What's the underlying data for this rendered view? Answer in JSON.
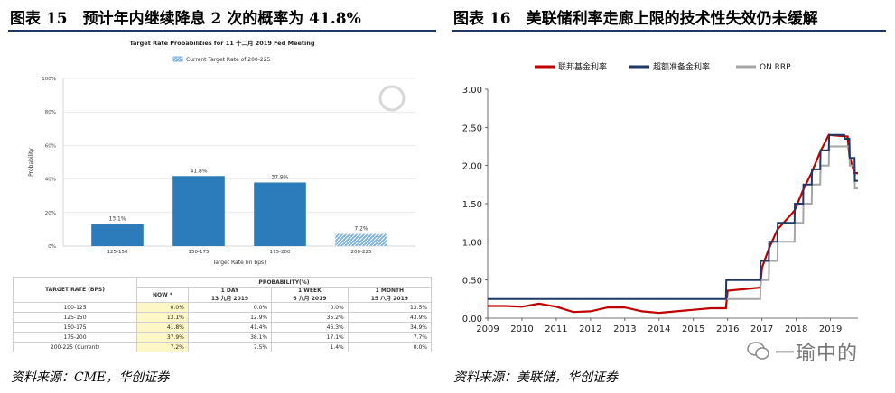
{
  "left": {
    "title": "图表 15　预计年内继续降息 2 次的概率为 41.8%",
    "source": "资料来源：CME，华创证券"
  },
  "right": {
    "title": "图表 16　美联储利率走廊上限的技术性失效仍未缓解",
    "source": "资料来源：美联储，华创证券"
  },
  "watermark": "一瑜中的",
  "chart_data": [
    {
      "type": "bar",
      "title": "Target Rate Probabilities for 11 十二月 2019 Fed Meeting",
      "legend": [
        "Current Target Rate of 200-225"
      ],
      "categories": [
        "125-150",
        "150-175",
        "175-200",
        "200-225"
      ],
      "values": [
        13.1,
        41.8,
        37.9,
        7.2
      ],
      "data_labels": [
        "13.1%",
        "41.8%",
        "37.9%",
        "7.2%"
      ],
      "highlight_category": "200-225",
      "xlabel": "Target Rate (in bps)",
      "ylabel": "Probability",
      "y_ticks": [
        "0%",
        "20%",
        "40%",
        "60%",
        "80%",
        "100%"
      ],
      "ylim": [
        0,
        100
      ],
      "grid": true,
      "colors": {
        "bar": "#2c7bba",
        "highlight": "#7fb3e0"
      }
    },
    {
      "type": "table",
      "group_header": "PROBABILITY(%)",
      "columns": [
        {
          "label": "TARGET RATE (BPS)",
          "sub": ""
        },
        {
          "label": "NOW *",
          "sub": ""
        },
        {
          "label": "1 DAY",
          "sub": "13 九月 2019"
        },
        {
          "label": "1 WEEK",
          "sub": "6 九月 2019"
        },
        {
          "label": "1 MONTH",
          "sub": "15 八月 2019"
        }
      ],
      "rows": [
        [
          "100-125",
          "0.0%",
          "0.0%",
          "0.0%",
          "13.5%"
        ],
        [
          "125-150",
          "13.1%",
          "12.9%",
          "35.2%",
          "43.9%"
        ],
        [
          "150-175",
          "41.8%",
          "41.4%",
          "46.3%",
          "34.9%"
        ],
        [
          "175-200",
          "37.9%",
          "38.1%",
          "17.1%",
          "7.7%"
        ],
        [
          "200-225 (Current)",
          "7.2%",
          "7.5%",
          "1.4%",
          "0.0%"
        ]
      ]
    },
    {
      "type": "line",
      "legend_position": "top",
      "series": [
        {
          "name": "联邦基金利率",
          "color": "#c00000",
          "x": [
            2009.0,
            2009.5,
            2010.0,
            2010.5,
            2011.0,
            2011.5,
            2012.0,
            2012.5,
            2013.0,
            2013.5,
            2014.0,
            2014.5,
            2015.0,
            2015.5,
            2015.95,
            2016.0,
            2016.95,
            2017.0,
            2017.2,
            2017.45,
            2017.95,
            2018.2,
            2018.45,
            2018.7,
            2018.95,
            2019.5,
            2019.55,
            2019.7,
            2019.8
          ],
          "y": [
            0.16,
            0.16,
            0.15,
            0.19,
            0.15,
            0.08,
            0.09,
            0.14,
            0.14,
            0.09,
            0.07,
            0.09,
            0.11,
            0.13,
            0.13,
            0.36,
            0.4,
            0.66,
            0.91,
            1.16,
            1.41,
            1.68,
            1.91,
            2.18,
            2.4,
            2.38,
            2.12,
            1.9,
            1.9
          ]
        },
        {
          "name": "超额准备金利率",
          "color": "#1f3864",
          "x": [
            2009.0,
            2015.95,
            2015.96,
            2016.95,
            2016.96,
            2017.2,
            2017.21,
            2017.45,
            2017.46,
            2017.95,
            2017.96,
            2018.2,
            2018.21,
            2018.45,
            2018.46,
            2018.7,
            2018.71,
            2018.95,
            2018.96,
            2019.4,
            2019.41,
            2019.55,
            2019.56,
            2019.7,
            2019.71,
            2019.8
          ],
          "y": [
            0.25,
            0.25,
            0.5,
            0.5,
            0.75,
            0.75,
            1.0,
            1.0,
            1.25,
            1.25,
            1.5,
            1.5,
            1.75,
            1.75,
            1.95,
            1.95,
            2.2,
            2.2,
            2.4,
            2.4,
            2.35,
            2.35,
            2.1,
            2.1,
            1.8,
            1.8
          ]
        },
        {
          "name": "ON RRP",
          "color": "#a6a6a6",
          "x": [
            2015.95,
            2016.95,
            2016.96,
            2017.2,
            2017.21,
            2017.45,
            2017.46,
            2017.95,
            2017.96,
            2018.2,
            2018.21,
            2018.45,
            2018.46,
            2018.7,
            2018.71,
            2018.95,
            2018.96,
            2019.4,
            2019.41,
            2019.55,
            2019.56,
            2019.7,
            2019.71,
            2019.8
          ],
          "y": [
            0.25,
            0.25,
            0.5,
            0.5,
            0.75,
            0.75,
            1.0,
            1.0,
            1.25,
            1.25,
            1.5,
            1.5,
            1.75,
            1.75,
            2.0,
            2.0,
            2.25,
            2.25,
            2.25,
            2.25,
            2.0,
            2.0,
            1.7,
            1.7
          ]
        }
      ],
      "x_ticks": [
        "2009",
        "2010",
        "2011",
        "2012",
        "2013",
        "2014",
        "2015",
        "2016",
        "2017",
        "2018",
        "2019"
      ],
      "y_ticks": [
        "0.00",
        "0.50",
        "1.00",
        "1.50",
        "2.00",
        "2.50",
        "3.00"
      ],
      "xlim": [
        2009,
        2019.8
      ],
      "ylim": [
        0,
        3
      ],
      "grid": false
    }
  ]
}
